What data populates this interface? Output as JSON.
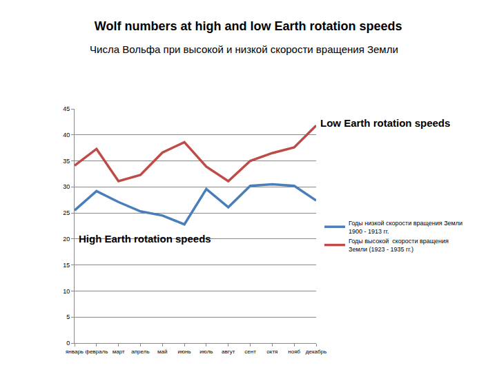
{
  "chart_data": {
    "type": "line",
    "title": "Wolf numbers at high and low Earth rotation speeds",
    "subtitle": "Числа Вольфа при высокой и низкой скорости вращения Земли",
    "categories": [
      "январь",
      "февраль",
      "март",
      "апрель",
      "май",
      "июнь",
      "июль",
      "авгут",
      "сент",
      "октя",
      "нояб",
      "декабрь"
    ],
    "series": [
      {
        "name": "Годы низкой скорости вращения Земли 1900 - 1913 гг.",
        "color": "#4a7ebb",
        "values": [
          25.5,
          29.2,
          27.1,
          25.3,
          24.5,
          22.8,
          29.6,
          26.1,
          30.2,
          30.5,
          30.2,
          27.4
        ]
      },
      {
        "name": "Годы высокой  скорости вращения Земли (1923 - 1935 гг.)",
        "color": "#be4b48",
        "values": [
          34.1,
          37.3,
          31.1,
          32.3,
          36.6,
          38.6,
          33.9,
          31.1,
          35.0,
          36.5,
          37.6,
          41.8
        ]
      }
    ],
    "annotations": [
      "Low Earth rotation speeds",
      "High Earth rotation speeds"
    ],
    "ylim": [
      0,
      45
    ],
    "yticks": [
      0,
      5,
      10,
      15,
      20,
      25,
      30,
      35,
      40,
      45
    ],
    "grid": true,
    "legend": "right"
  }
}
